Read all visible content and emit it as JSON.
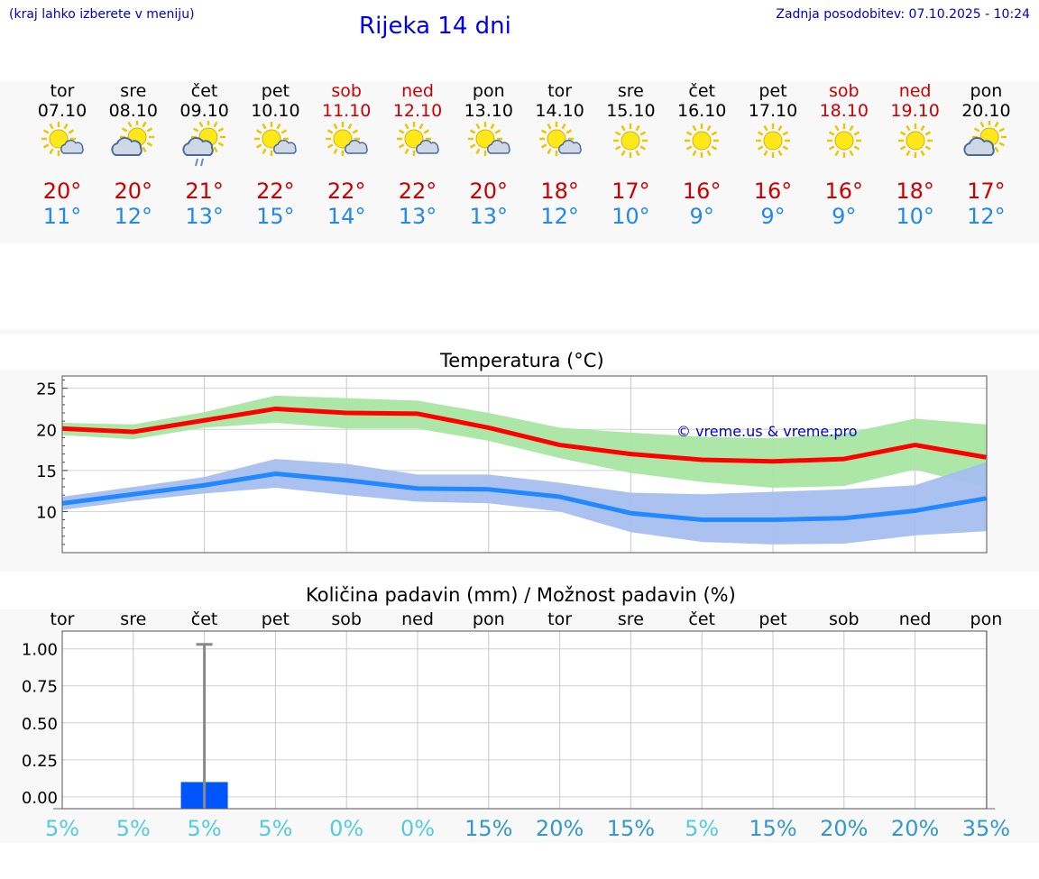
{
  "header": {
    "hint": "(kraj lahko izberete v meniju)",
    "title": "Rijeka 14 dni",
    "updated_label": "Zadnja posodobitev: 07.10.2025 - 10:24"
  },
  "colors": {
    "max_line": "#ff0000",
    "max_band": "#a8e6a3",
    "min_line": "#2288ff",
    "min_band": "#a6bff0",
    "bar": "#0055ff",
    "prob_low": "#55ccdd",
    "prob_high": "#3399cc",
    "link": "#0000cc"
  },
  "days": [
    {
      "name": "tor",
      "date": "07.10",
      "icon": "sun-cloud",
      "tmax": "20°",
      "tmin": "11°",
      "weekend": false
    },
    {
      "name": "sre",
      "date": "08.10",
      "icon": "cloud-sun",
      "tmax": "20°",
      "tmin": "12°",
      "weekend": false
    },
    {
      "name": "čet",
      "date": "09.10",
      "icon": "cloud-sun-rain",
      "tmax": "21°",
      "tmin": "13°",
      "weekend": false
    },
    {
      "name": "pet",
      "date": "10.10",
      "icon": "sun-cloud",
      "tmax": "22°",
      "tmin": "15°",
      "weekend": false
    },
    {
      "name": "sob",
      "date": "11.10",
      "icon": "sun-cloud",
      "tmax": "22°",
      "tmin": "14°",
      "weekend": true
    },
    {
      "name": "ned",
      "date": "12.10",
      "icon": "sun-cloud",
      "tmax": "22°",
      "tmin": "13°",
      "weekend": true
    },
    {
      "name": "pon",
      "date": "13.10",
      "icon": "sun-cloud",
      "tmax": "20°",
      "tmin": "13°",
      "weekend": false
    },
    {
      "name": "tor",
      "date": "14.10",
      "icon": "sun-cloud",
      "tmax": "18°",
      "tmin": "12°",
      "weekend": false
    },
    {
      "name": "sre",
      "date": "15.10",
      "icon": "sun",
      "tmax": "17°",
      "tmin": "10°",
      "weekend": false
    },
    {
      "name": "čet",
      "date": "16.10",
      "icon": "sun",
      "tmax": "16°",
      "tmin": "9°",
      "weekend": false
    },
    {
      "name": "pet",
      "date": "17.10",
      "icon": "sun",
      "tmax": "16°",
      "tmin": "9°",
      "weekend": false
    },
    {
      "name": "sob",
      "date": "18.10",
      "icon": "sun",
      "tmax": "16°",
      "tmin": "9°",
      "weekend": true
    },
    {
      "name": "ned",
      "date": "19.10",
      "icon": "sun",
      "tmax": "18°",
      "tmin": "10°",
      "weekend": true
    },
    {
      "name": "pon",
      "date": "20.10",
      "icon": "cloud-sun",
      "tmax": "17°",
      "tmin": "12°",
      "weekend": false
    }
  ],
  "chart_data": [
    {
      "type": "line",
      "title": "Temperatura (°C)",
      "watermark": "© vreme.us & vreme.pro",
      "ylim": [
        5,
        26.5
      ],
      "yticks": [
        10,
        15,
        20,
        25
      ],
      "ytick_labels": [
        "10",
        "15",
        "20",
        "25"
      ],
      "x": [
        0,
        1,
        2,
        3,
        4,
        5,
        6,
        7,
        8,
        9,
        10,
        11,
        12,
        13
      ],
      "series": [
        {
          "name": "max",
          "values": [
            20.1,
            19.7,
            21.1,
            22.5,
            22.0,
            21.9,
            20.2,
            18.1,
            17.0,
            16.3,
            16.1,
            16.4,
            18.1,
            16.6
          ],
          "band_low": [
            19.3,
            18.8,
            20.2,
            20.8,
            20.1,
            20.1,
            18.6,
            16.5,
            14.7,
            13.6,
            12.9,
            13.1,
            15.1,
            12.9
          ],
          "band_high": [
            20.8,
            20.6,
            22.1,
            24.1,
            23.8,
            23.5,
            22.0,
            20.2,
            19.6,
            19.1,
            18.9,
            19.5,
            21.3,
            20.6
          ]
        },
        {
          "name": "min",
          "values": [
            11.0,
            12.1,
            13.2,
            14.6,
            13.8,
            12.8,
            12.7,
            11.8,
            9.8,
            9.0,
            9.0,
            9.2,
            10.1,
            11.6
          ],
          "band_low": [
            10.2,
            11.3,
            12.2,
            12.9,
            12.0,
            11.2,
            11.0,
            10.0,
            7.5,
            6.3,
            6.0,
            6.1,
            7.1,
            7.6
          ],
          "band_high": [
            11.8,
            13.0,
            14.2,
            16.4,
            15.8,
            14.5,
            14.5,
            13.5,
            12.3,
            12.1,
            12.4,
            12.7,
            13.2,
            16.0
          ]
        }
      ]
    },
    {
      "type": "bar",
      "title": "Količina padavin (mm) / Možnost padavin (%)",
      "categories": [
        "tor",
        "sre",
        "čet",
        "pet",
        "sob",
        "ned",
        "pon",
        "tor",
        "sre",
        "čet",
        "pet",
        "sob",
        "ned",
        "pon"
      ],
      "ylim": [
        -0.08,
        1.12
      ],
      "yticks": [
        0,
        0.25,
        0.5,
        0.75,
        1.0
      ],
      "ytick_labels": [
        "0.00",
        "0.25",
        "0.50",
        "0.75",
        "1.00"
      ],
      "values": [
        0,
        0,
        0.1,
        0,
        0,
        0,
        0,
        0,
        0,
        0,
        0,
        0,
        0,
        0
      ],
      "error_max": [
        0,
        0,
        1.03,
        0,
        0,
        0,
        0,
        0,
        0,
        0,
        0,
        0,
        0,
        0
      ],
      "probability": [
        "5%",
        "5%",
        "5%",
        "5%",
        "0%",
        "0%",
        "15%",
        "20%",
        "15%",
        "5%",
        "15%",
        "20%",
        "20%",
        "35%"
      ],
      "probability_values": [
        5,
        5,
        5,
        5,
        0,
        0,
        15,
        20,
        15,
        5,
        15,
        20,
        20,
        35
      ]
    }
  ]
}
